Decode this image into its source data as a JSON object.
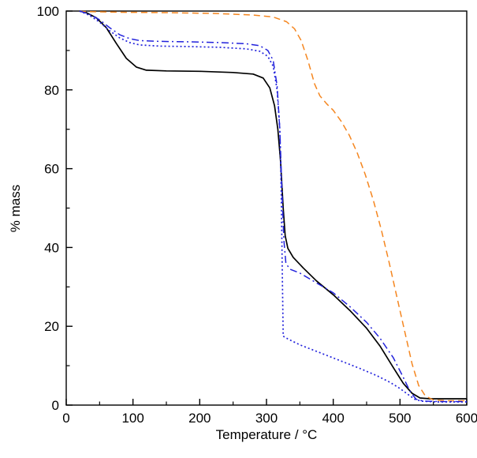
{
  "figure": {
    "title": "",
    "xlabel": "Temperature / °C",
    "ylabel": "% mass"
  },
  "chart_data": {
    "type": "line",
    "title": "",
    "xlabel": "Temperature / °C",
    "ylabel": "% mass",
    "xlim": [
      0,
      600
    ],
    "ylim": [
      0,
      100
    ],
    "x_ticks": [
      0,
      100,
      200,
      300,
      400,
      500,
      600
    ],
    "y_ticks": [
      0,
      20,
      40,
      60,
      80,
      100
    ],
    "x_minor_step": 50,
    "y_minor_step": 10,
    "grid": false,
    "legend": "none",
    "frame": "box",
    "series": [
      {
        "name": "black-solid",
        "color": "#000000",
        "dash": "solid",
        "width": 1.7,
        "points": [
          [
            20,
            100
          ],
          [
            30,
            99.6
          ],
          [
            45,
            98.3
          ],
          [
            60,
            95.8
          ],
          [
            75,
            91.8
          ],
          [
            90,
            88.0
          ],
          [
            105,
            85.8
          ],
          [
            120,
            85.0
          ],
          [
            150,
            84.8
          ],
          [
            200,
            84.7
          ],
          [
            250,
            84.4
          ],
          [
            280,
            84.0
          ],
          [
            295,
            83.0
          ],
          [
            305,
            80.5
          ],
          [
            312,
            76.0
          ],
          [
            317,
            70.0
          ],
          [
            321,
            62.0
          ],
          [
            325,
            50.0
          ],
          [
            328,
            43.0
          ],
          [
            332,
            39.8
          ],
          [
            340,
            37.5
          ],
          [
            355,
            34.8
          ],
          [
            375,
            31.5
          ],
          [
            400,
            28.0
          ],
          [
            425,
            24.0
          ],
          [
            450,
            19.5
          ],
          [
            470,
            15.0
          ],
          [
            490,
            9.5
          ],
          [
            505,
            5.5
          ],
          [
            518,
            3.0
          ],
          [
            530,
            1.8
          ],
          [
            545,
            1.6
          ],
          [
            600,
            1.6
          ]
        ]
      },
      {
        "name": "orange-dashed",
        "color": "#f5861f",
        "dash": "8 5",
        "width": 1.5,
        "points": [
          [
            20,
            99.9
          ],
          [
            80,
            99.7
          ],
          [
            150,
            99.6
          ],
          [
            220,
            99.4
          ],
          [
            280,
            99.0
          ],
          [
            310,
            98.5
          ],
          [
            330,
            97.3
          ],
          [
            342,
            95.5
          ],
          [
            352,
            92.5
          ],
          [
            362,
            87.5
          ],
          [
            372,
            81.5
          ],
          [
            380,
            78.5
          ],
          [
            390,
            76.5
          ],
          [
            400,
            74.8
          ],
          [
            412,
            72.0
          ],
          [
            424,
            68.5
          ],
          [
            436,
            64.0
          ],
          [
            448,
            58.5
          ],
          [
            460,
            52.0
          ],
          [
            472,
            44.5
          ],
          [
            484,
            36.0
          ],
          [
            496,
            27.0
          ],
          [
            508,
            18.0
          ],
          [
            518,
            10.5
          ],
          [
            528,
            5.0
          ],
          [
            538,
            2.3
          ],
          [
            550,
            1.3
          ],
          [
            570,
            1.1
          ],
          [
            600,
            1.1
          ]
        ]
      },
      {
        "name": "blue-dash-dot",
        "color": "#2323dc",
        "dash": "9 4 2 4",
        "width": 1.5,
        "points": [
          [
            20,
            100
          ],
          [
            35,
            99.2
          ],
          [
            50,
            97.8
          ],
          [
            65,
            95.8
          ],
          [
            80,
            94.0
          ],
          [
            95,
            93.0
          ],
          [
            110,
            92.5
          ],
          [
            140,
            92.3
          ],
          [
            180,
            92.2
          ],
          [
            230,
            92.0
          ],
          [
            270,
            91.7
          ],
          [
            290,
            91.2
          ],
          [
            302,
            90.0
          ],
          [
            310,
            87.5
          ],
          [
            316,
            81.0
          ],
          [
            320,
            70.0
          ],
          [
            323,
            55.0
          ],
          [
            326,
            42.0
          ],
          [
            329,
            36.0
          ],
          [
            335,
            34.5
          ],
          [
            350,
            33.5
          ],
          [
            375,
            31.0
          ],
          [
            400,
            28.5
          ],
          [
            425,
            25.0
          ],
          [
            450,
            21.0
          ],
          [
            470,
            17.0
          ],
          [
            490,
            12.0
          ],
          [
            505,
            7.0
          ],
          [
            515,
            3.5
          ],
          [
            524,
            1.5
          ],
          [
            535,
            1.0
          ],
          [
            560,
            0.9
          ],
          [
            600,
            0.9
          ]
        ]
      },
      {
        "name": "blue-dotted",
        "color": "#2323dc",
        "dash": "2 3",
        "width": 1.7,
        "points": [
          [
            20,
            100
          ],
          [
            35,
            98.9
          ],
          [
            50,
            97.2
          ],
          [
            65,
            95.0
          ],
          [
            80,
            93.2
          ],
          [
            95,
            92.0
          ],
          [
            110,
            91.4
          ],
          [
            140,
            91.1
          ],
          [
            180,
            91.0
          ],
          [
            230,
            90.8
          ],
          [
            270,
            90.4
          ],
          [
            290,
            89.8
          ],
          [
            302,
            88.5
          ],
          [
            310,
            86.0
          ],
          [
            316,
            80.0
          ],
          [
            320,
            70.0
          ],
          [
            322,
            55.0
          ],
          [
            324,
            30.0
          ],
          [
            325,
            17.5
          ],
          [
            332,
            16.8
          ],
          [
            350,
            15.3
          ],
          [
            380,
            13.3
          ],
          [
            410,
            11.3
          ],
          [
            440,
            9.3
          ],
          [
            465,
            7.5
          ],
          [
            485,
            5.8
          ],
          [
            500,
            4.2
          ],
          [
            512,
            2.7
          ],
          [
            522,
            1.5
          ],
          [
            532,
            1.0
          ],
          [
            555,
            0.8
          ],
          [
            600,
            0.8
          ]
        ]
      }
    ]
  }
}
